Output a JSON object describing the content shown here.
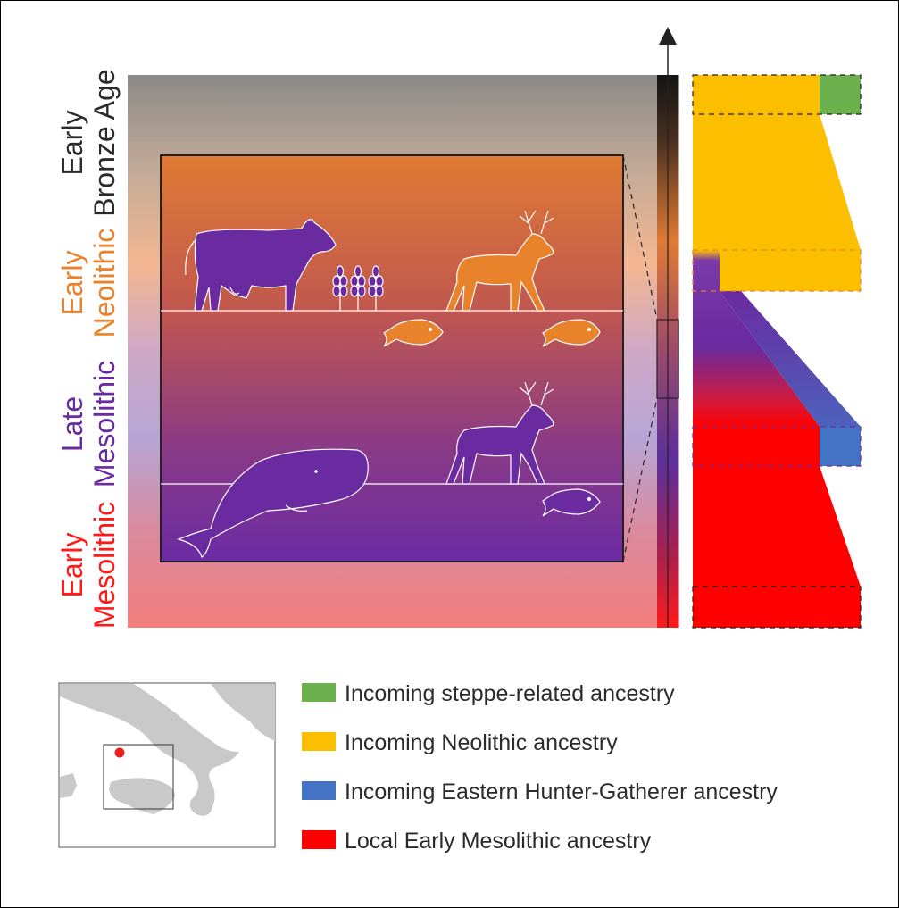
{
  "periods": [
    {
      "line1": "Early",
      "line2": "Bronze Age",
      "color": "#2b2b2b"
    },
    {
      "line1": "Early",
      "line2": "Neolithic",
      "color": "#e8832b"
    },
    {
      "line1": "Late",
      "line2": "Mesolithic",
      "color": "#6a2aa0"
    },
    {
      "line1": "Early",
      "line2": "Mesolithic",
      "color": "#ff1a1a"
    }
  ],
  "legend": [
    {
      "label": "Incoming steppe-related ancestry",
      "color": "#6ab04c"
    },
    {
      "label": "Incoming Neolithic ancestry",
      "color": "#fcbf00"
    },
    {
      "label": "Incoming Eastern Hunter-Gatherer ancestry",
      "color": "#4472c4"
    },
    {
      "label": "Local Early Mesolithic ancestry",
      "color": "#ff0000"
    }
  ],
  "colors": {
    "purple": "#6a2aa0",
    "orange": "#e8832b",
    "green": "#6ab04c",
    "yellow": "#fcbf00",
    "blue": "#4472c4",
    "red": "#ff0000",
    "map_land": "#c9c9c9",
    "map_marker": "#e8201e"
  },
  "icons": [
    "cow-icon",
    "wheat-icon",
    "deer-icon",
    "fish-icon",
    "whale-icon",
    "arrow-up-icon"
  ]
}
